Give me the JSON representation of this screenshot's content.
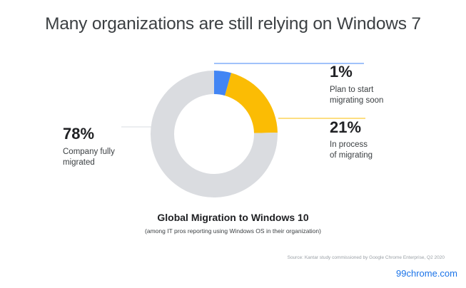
{
  "title": "Many organizations are still relying on Windows 7",
  "chart_data": {
    "type": "pie",
    "title": "Global Migration to Windows 10",
    "subtitle": "(among IT pros reporting using Windows OS in their organization)",
    "slices": [
      {
        "value": 1,
        "label": "1%",
        "desc_line1": "Plan to start",
        "desc_line2": "migrating soon",
        "color": "#4285f4"
      },
      {
        "value": 21,
        "label": "21%",
        "desc_line1": "In process",
        "desc_line2": "of migrating",
        "color": "#fbbc04"
      },
      {
        "value": 78,
        "label": "78%",
        "desc_line1": "Company fully",
        "desc_line2": "migrated",
        "color": "#dadce0"
      }
    ]
  },
  "source": "Source: Kantar study commissioned by Google Chrome Enterprise, Q2 2020",
  "watermark": "99chrome.com"
}
